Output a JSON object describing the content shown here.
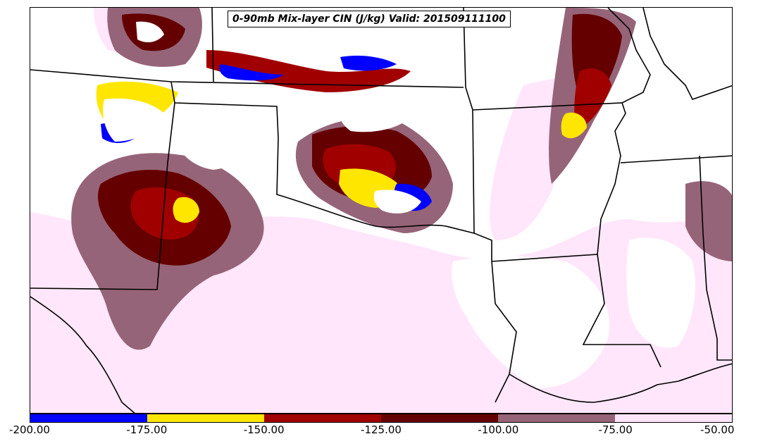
{
  "title": "0-90mb Mix-layer CIN (J/kg) Valid: 201509111100",
  "colorbar": {
    "bins": [
      {
        "from": -200,
        "to": -175,
        "color": "#0000ff"
      },
      {
        "from": -175,
        "to": -150,
        "color": "#ffe600"
      },
      {
        "from": -150,
        "to": -125,
        "color": "#a00000"
      },
      {
        "from": -125,
        "to": -100,
        "color": "#640000"
      },
      {
        "from": -100,
        "to": -75,
        "color": "#966478"
      },
      {
        "from": -75,
        "to": -50,
        "color": "#ffe6fa"
      }
    ],
    "tick_labels": [
      "-200.00",
      "-175.00",
      "-150.00",
      "-125.00",
      "-100.00",
      "-75.00",
      "-50.00"
    ]
  },
  "map": {
    "field": "0-90mb Mix-layer CIN",
    "units": "J/kg",
    "valid_time": "201509111100",
    "boundaries": "state and country borders"
  }
}
